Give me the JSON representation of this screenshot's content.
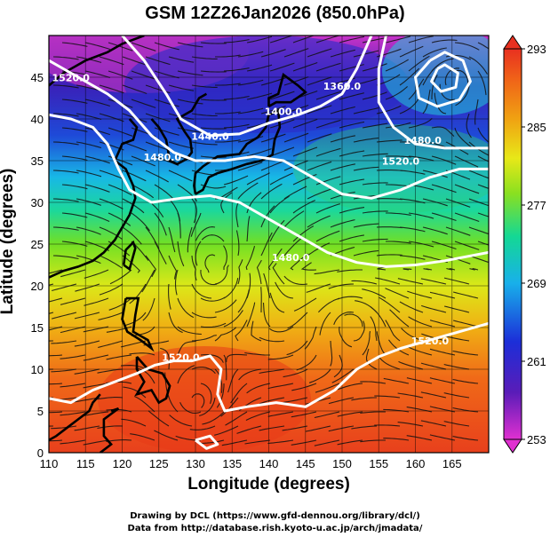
{
  "title": "GSM 12Z26Jan2026 (850.0hPa)",
  "xlabel": "Longitude (degrees)",
  "ylabel": "Latitude  (degrees)",
  "credit_line1": "Drawing by DCL (https://www.gfd-dennou.org/library/dcl/)",
  "credit_line2": "Data from http://database.rish.kyoto-u.ac.jp/arch/jmadata/",
  "chart_data": {
    "type": "heatmap",
    "variable": "850 hPa temperature (K) with geopotential height contours and streamlines",
    "x_ticks": [
      110,
      115,
      120,
      125,
      130,
      135,
      140,
      145,
      150,
      155,
      160,
      165
    ],
    "y_ticks": [
      0,
      5,
      10,
      15,
      20,
      25,
      30,
      35,
      40,
      45
    ],
    "xlim": [
      110,
      170
    ],
    "ylim": [
      0,
      50
    ],
    "colorbar": {
      "range": [
        253,
        293
      ],
      "tick_labels": [
        "293",
        "285",
        "277",
        "269",
        "261",
        "253"
      ],
      "colors": [
        "#d630c8",
        "#4a1fb0",
        "#1c2fd6",
        "#1ab0e8",
        "#12d6a0",
        "#70e020",
        "#e8e818",
        "#f0a010",
        "#f06018",
        "#e83020"
      ]
    },
    "height_contours": [
      {
        "label": "1520.0",
        "lon": 113,
        "lat": 44.5
      },
      {
        "label": "1480.0",
        "lon": 125.5,
        "lat": 35
      },
      {
        "label": "1440.0",
        "lon": 132,
        "lat": 37.5
      },
      {
        "label": "1400.0",
        "lon": 142,
        "lat": 40.5
      },
      {
        "label": "1360.0",
        "lon": 150,
        "lat": 43.5
      },
      {
        "label": "1480.0",
        "lon": 161,
        "lat": 37
      },
      {
        "label": "1520.0",
        "lon": 158,
        "lat": 34.5
      },
      {
        "label": "1480.0",
        "lon": 143,
        "lat": 23
      },
      {
        "label": "1520.0",
        "lon": 128,
        "lat": 11
      },
      {
        "label": "1520.0",
        "lon": 162,
        "lat": 13
      }
    ]
  }
}
